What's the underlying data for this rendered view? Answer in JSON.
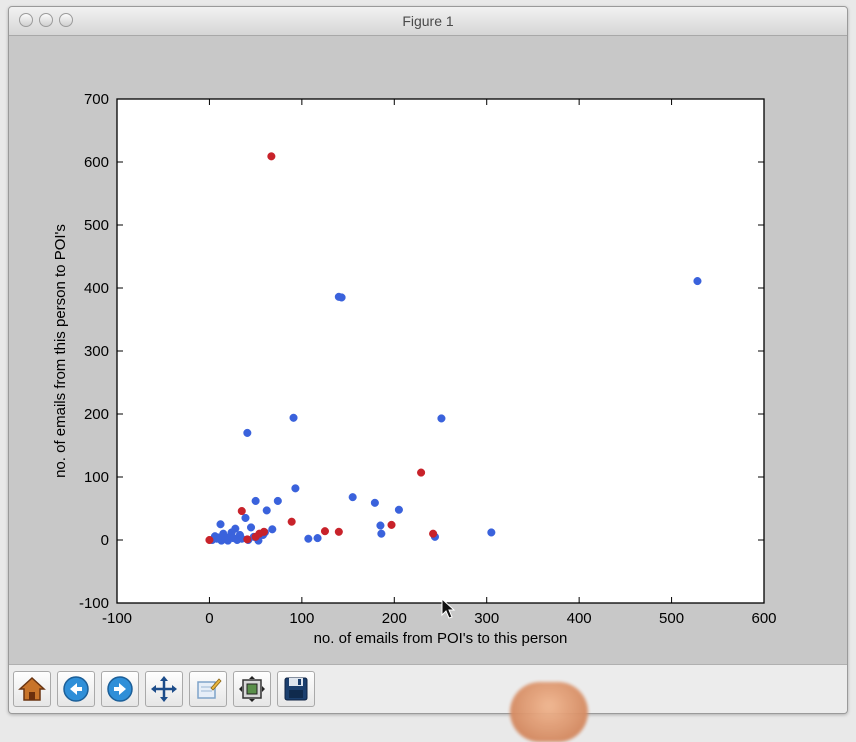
{
  "window": {
    "title": "Figure 1"
  },
  "toolbar": {
    "buttons": [
      {
        "name": "home-button",
        "icon": "home-icon"
      },
      {
        "name": "back-button",
        "icon": "back-arrow-icon"
      },
      {
        "name": "forward-button",
        "icon": "forward-arrow-icon"
      },
      {
        "name": "pan-button",
        "icon": "move-arrows-icon"
      },
      {
        "name": "zoom-button",
        "icon": "zoom-rect-icon"
      },
      {
        "name": "subplots-button",
        "icon": "subplots-icon"
      },
      {
        "name": "save-button",
        "icon": "floppy-disk-icon"
      }
    ]
  },
  "colors": {
    "blue": "#3a62dc",
    "red": "#c8222a"
  },
  "chart_data": {
    "type": "scatter",
    "title": "",
    "xlabel": "no. of emails from POI's to this person",
    "ylabel": "no. of emails from this person to POI's",
    "xlim": [
      -100,
      600
    ],
    "ylim": [
      -100,
      700
    ],
    "xticks": [
      -100,
      0,
      100,
      200,
      300,
      400,
      500,
      600
    ],
    "yticks": [
      -100,
      0,
      100,
      200,
      300,
      400,
      500,
      600,
      700
    ],
    "grid": false,
    "series": [
      {
        "color": "blue",
        "points": [
          [
            528,
            411
          ],
          [
            140,
            386
          ],
          [
            143,
            385
          ],
          [
            91,
            194
          ],
          [
            251,
            193
          ],
          [
            41,
            170
          ],
          [
            93,
            82
          ],
          [
            155,
            68
          ],
          [
            74,
            62
          ],
          [
            50,
            62
          ],
          [
            179,
            59
          ],
          [
            205,
            48
          ],
          [
            62,
            47
          ],
          [
            39,
            35
          ],
          [
            185,
            23
          ],
          [
            12,
            25
          ],
          [
            45,
            20
          ],
          [
            28,
            18
          ],
          [
            68,
            17
          ],
          [
            24,
            12
          ],
          [
            186,
            10
          ],
          [
            305,
            12
          ],
          [
            15,
            10
          ],
          [
            33,
            8
          ],
          [
            22,
            5
          ],
          [
            6,
            6
          ],
          [
            48,
            5
          ],
          [
            117,
            3
          ],
          [
            107,
            2
          ],
          [
            244,
            5
          ],
          [
            3,
            0
          ],
          [
            8,
            2
          ],
          [
            13,
            -1
          ],
          [
            18,
            1
          ],
          [
            26,
            3
          ],
          [
            30,
            0
          ],
          [
            35,
            2
          ],
          [
            42,
            0
          ],
          [
            53,
            -1
          ],
          [
            58,
            8
          ],
          [
            60,
            12
          ],
          [
            10,
            4
          ],
          [
            20,
            -1
          ]
        ]
      },
      {
        "color": "red",
        "points": [
          [
            67,
            609
          ],
          [
            229,
            107
          ],
          [
            89,
            29
          ],
          [
            35,
            46
          ],
          [
            197,
            24
          ],
          [
            125,
            14
          ],
          [
            140,
            13
          ],
          [
            59,
            13
          ],
          [
            54,
            10
          ],
          [
            50,
            5
          ],
          [
            41,
            1
          ],
          [
            242,
            10
          ],
          [
            0,
            0
          ]
        ]
      }
    ]
  }
}
